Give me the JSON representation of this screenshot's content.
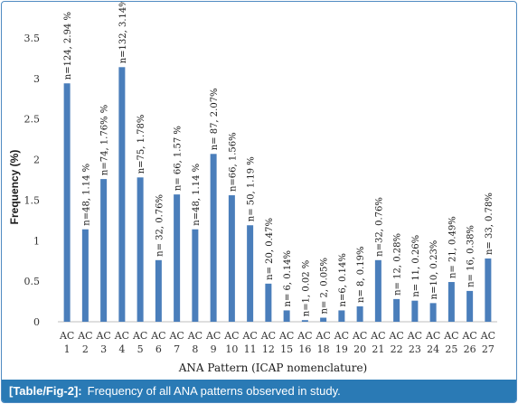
{
  "chart_data": {
    "type": "bar",
    "xlabel": "ANA Pattern (ICAP nomenclature)",
    "ylabel": "Frequency (%)",
    "ylim": [
      0,
      3.5
    ],
    "yticks": [
      "0",
      "0.5",
      "1",
      "1.5",
      "2",
      "2.5",
      "3",
      "3.5"
    ],
    "grid": false,
    "bar_color": "#4a7ebb",
    "categories": [
      [
        "AC",
        "1"
      ],
      [
        "AC",
        "2"
      ],
      [
        "AC",
        "3"
      ],
      [
        "AC",
        "4"
      ],
      [
        "AC",
        "5"
      ],
      [
        "AC",
        "6"
      ],
      [
        "AC",
        "7"
      ],
      [
        "AC",
        "8"
      ],
      [
        "AC",
        "9"
      ],
      [
        "AC",
        "10"
      ],
      [
        "AC",
        "11"
      ],
      [
        "AC",
        "12"
      ],
      [
        "AC",
        "15"
      ],
      [
        "AC",
        "16"
      ],
      [
        "AC",
        "18"
      ],
      [
        "AC",
        "19"
      ],
      [
        "AC",
        "20"
      ],
      [
        "AC",
        "21"
      ],
      [
        "AC",
        "22"
      ],
      [
        "AC",
        "23"
      ],
      [
        "AC",
        "24"
      ],
      [
        "AC",
        "25"
      ],
      [
        "AC",
        "26"
      ],
      [
        "AC",
        "27"
      ]
    ],
    "values": [
      2.94,
      1.14,
      1.76,
      3.14,
      1.78,
      0.76,
      1.57,
      1.14,
      2.07,
      1.56,
      1.19,
      0.47,
      0.14,
      0.02,
      0.05,
      0.14,
      0.19,
      0.76,
      0.28,
      0.26,
      0.23,
      0.49,
      0.38,
      0.78
    ],
    "data_labels": [
      "n=124, 2.94 %",
      "n=48, 1.14 %",
      "n=74, 1.76% %",
      "n=132, 3.14%",
      "n=75, 1.78%",
      "n= 32, 0.76%",
      "n= 66, 1.57 %",
      "n=48, 1.14 %",
      "n= 87, 2.07%",
      "n=66, 1.56%",
      "n= 50, 1.19 %",
      "n= 20, 0.47%",
      "n= 6, 0.14%",
      "n=1, 0.02 %",
      "n= 2, 0.05%",
      "n=6, 0.14%",
      "n= 8, 0.19%",
      "n=32, 0.76%",
      "n= 12, 0.28%",
      "n= 11, 0.26%",
      "n=10, 0.23%",
      "n= 21, 0.49%",
      "n= 16, 0.38%",
      "n= 33, 0.78%"
    ]
  },
  "caption": {
    "label": "[Table/Fig-2]:",
    "text": "Frequency of all ANA patterns observed in study."
  }
}
